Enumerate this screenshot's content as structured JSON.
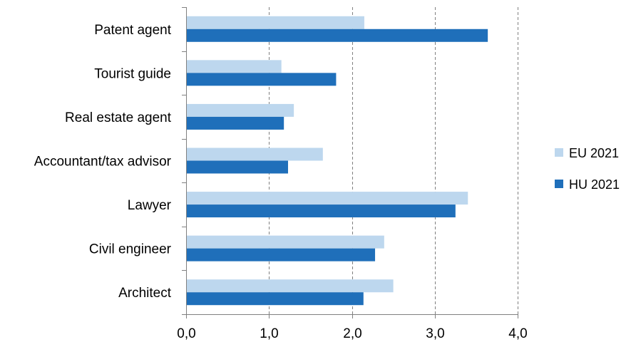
{
  "chart_data": {
    "type": "bar",
    "orientation": "horizontal",
    "categories": [
      "Patent agent",
      "Tourist guide",
      "Real estate agent",
      "Accountant/tax advisor",
      "Lawyer",
      "Civil engineer",
      "Architect"
    ],
    "series": [
      {
        "name": "EU 2021",
        "color": "#bdd7ee",
        "values": [
          2.15,
          1.15,
          1.3,
          1.65,
          3.4,
          2.39,
          2.5
        ]
      },
      {
        "name": "HU 2021",
        "color": "#1f6fba",
        "values": [
          3.64,
          1.81,
          1.18,
          1.23,
          3.25,
          2.28,
          2.14
        ]
      }
    ],
    "xlim": [
      0,
      4
    ],
    "x_ticks": [
      "0,0",
      "1,0",
      "2,0",
      "3,0",
      "4,0"
    ],
    "x_tick_values": [
      0,
      1,
      2,
      3,
      4
    ],
    "grid": "vertical dashed",
    "legend_position": "right",
    "title": "",
    "xlabel": "",
    "ylabel": ""
  }
}
